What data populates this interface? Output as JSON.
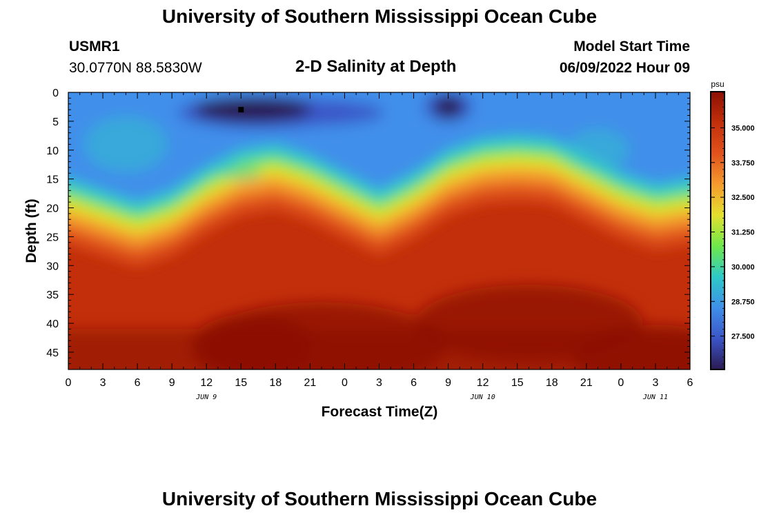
{
  "header": {
    "title": "University of Southern Mississippi Ocean Cube",
    "station": "USMR1",
    "coords": "30.0770N  88.5830W",
    "plot_title": "2-D Salinity at Depth",
    "model_start_label": "Model Start Time",
    "model_start_value": "06/09/2022 Hour 09"
  },
  "footer": {
    "title": "University of Southern Mississippi Ocean Cube"
  },
  "chart_data": {
    "type": "heatmap",
    "title": "2-D Salinity at Depth",
    "xlabel": "Forecast Time(Z)",
    "ylabel": "Depth (ft)",
    "x_ticks": [
      "0",
      "3",
      "6",
      "9",
      "12",
      "15",
      "18",
      "21",
      "0",
      "3",
      "6",
      "9",
      "12",
      "15",
      "18",
      "21",
      "0",
      "3",
      "6"
    ],
    "x_range_hours": [
      0,
      54
    ],
    "date_labels": [
      {
        "label": "JUN 9",
        "hour": 12
      },
      {
        "label": "JUN 10",
        "hour": 36
      },
      {
        "label": "JUN 11",
        "hour": 51
      }
    ],
    "y_ticks": [
      "0",
      "5",
      "10",
      "15",
      "20",
      "25",
      "30",
      "35",
      "40",
      "45"
    ],
    "y_range": [
      0,
      48
    ],
    "y_reversed": true,
    "colorbar": {
      "unit": "psu",
      "ticks": [
        "35.000",
        "33.750",
        "32.500",
        "31.250",
        "30.000",
        "28.750",
        "27.500"
      ],
      "range": [
        26.3,
        36.3
      ]
    },
    "marker": {
      "hour": 15,
      "depth": 3
    },
    "halocline_depth": {
      "hours": [
        0,
        3,
        6,
        9,
        12,
        15,
        18,
        21,
        24,
        27,
        30,
        33,
        36,
        39,
        42,
        45,
        48,
        51,
        54
      ],
      "depths": [
        17,
        19,
        21,
        19,
        15,
        12,
        11,
        13,
        16,
        19,
        16,
        12,
        10,
        9.5,
        10,
        13,
        16,
        18,
        17
      ]
    },
    "colors": {
      "c0": "#2b1a52",
      "c1": "#3b55c7",
      "c2": "#3f8fea",
      "c3": "#2ec9c8",
      "c4": "#6ee84a",
      "c5": "#e4e02e",
      "c6": "#f59a2e",
      "c7": "#e0521c",
      "c8": "#c22f0a",
      "c9": "#8c1004"
    }
  }
}
